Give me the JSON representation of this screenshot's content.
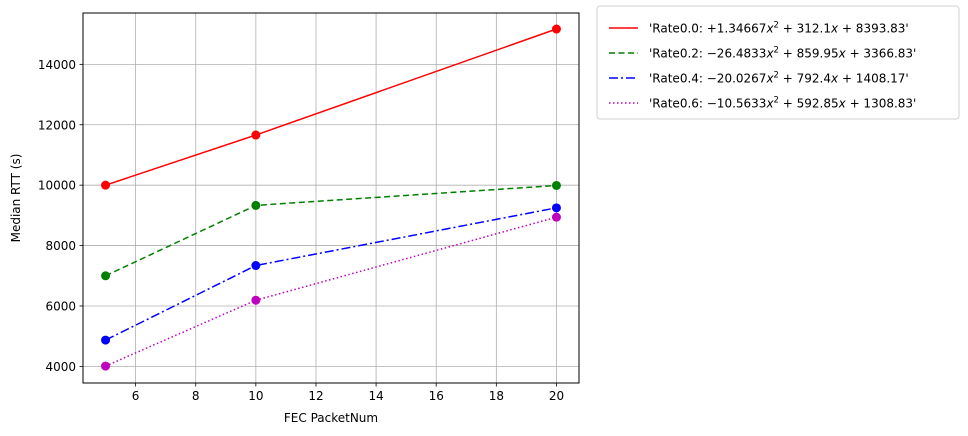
{
  "chart_data": {
    "type": "line",
    "xlabel": "FEC PacketNum",
    "ylabel": "Median RTT (s)",
    "xlim": [
      4.25,
      20.75
    ],
    "ylim": [
      3450,
      15700
    ],
    "grid": true,
    "legend_position": "outside upper right",
    "x_ticks": [
      "6",
      "8",
      "10",
      "12",
      "14",
      "16",
      "18",
      "20"
    ],
    "y_ticks": [
      "4000",
      "6000",
      "8000",
      "10000",
      "12000",
      "14000"
    ],
    "x": [
      5,
      10,
      20
    ],
    "series": [
      {
        "name": "'Rate0.0: +1.34667x² + 312.1x + 8393.83'",
        "label_parts": [
          "'Rate0.0: +1.34667",
          "x",
          "2",
          " + 312.1",
          "x",
          " + 8393.83'"
        ],
        "color": "#ff0000",
        "dash": "",
        "values": [
          10000,
          11660,
          15170
        ]
      },
      {
        "name": "'Rate0.2: −26.4833x² + 859.95x + 3366.83'",
        "label_parts": [
          "'Rate0.2: −26.4833",
          "x",
          "2",
          " + 859.95",
          "x",
          " + 3366.83'"
        ],
        "color": "#008000",
        "dash": "6,3.5",
        "values": [
          7000,
          9330,
          9990
        ]
      },
      {
        "name": "'Rate0.4: −20.0267x² + 792.4x + 1408.17'",
        "label_parts": [
          "'Rate0.4: −20.0267",
          "x",
          "2",
          " + 792.4",
          "x",
          " + 1408.17'"
        ],
        "color": "#0000ff",
        "dash": "9,3,2,3",
        "values": [
          4870,
          7340,
          9250
        ]
      },
      {
        "name": "'Rate0.6: −10.5633x² + 592.85x + 1308.83'",
        "label_parts": [
          "'Rate0.6: −10.5633",
          "x",
          "2",
          " + 592.85",
          "x",
          " + 1308.83'"
        ],
        "color": "#bf00bf",
        "dash": "1.5,2.5",
        "values": [
          4010,
          6190,
          8940
        ]
      }
    ]
  }
}
